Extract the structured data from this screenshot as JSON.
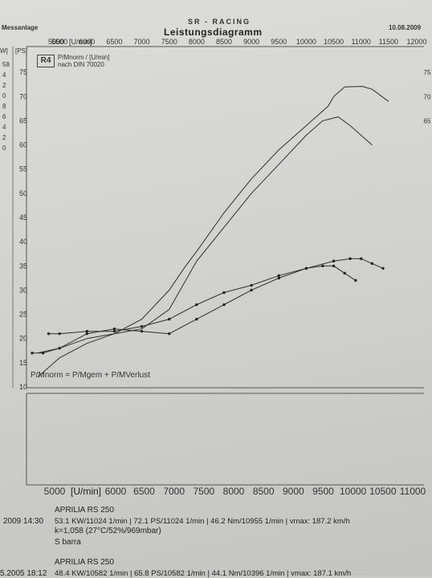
{
  "header": {
    "left": "Messanlage",
    "brand": "SR - RACING",
    "title": "Leistungsdiagramm",
    "date": "10.08.2009"
  },
  "logo": "R4",
  "legend": {
    "line1": "P/Mnorm / [U/min]",
    "line2": "nach DIN 70020"
  },
  "formula": "P/Mnorm = P/Mgem + P/MVerlust",
  "axes": {
    "top_unit_label": "[U/min]",
    "bottom_unit_label": "[U/min]",
    "left_unit_labels": [
      "W]",
      "[PS]"
    ]
  },
  "chart_data": {
    "type": "line",
    "title": "Leistungsdiagramm",
    "xlabel": "[U/min]",
    "ylabel": "[PS]",
    "xlim": [
      5000,
      12000
    ],
    "ylim": [
      10,
      80
    ],
    "x_ticks_top": [
      "5000",
      "5500",
      "6000",
      "6500",
      "7000",
      "7500",
      "8000",
      "8500",
      "9000",
      "9500",
      "10000",
      "10500",
      "11000",
      "11500",
      "12000"
    ],
    "x_ticks_bottom": [
      "5000",
      "6000",
      "6500",
      "7000",
      "7500",
      "8000",
      "8500",
      "9000",
      "9500",
      "10000",
      "10500",
      "11000"
    ],
    "y_ticks": [
      "10",
      "15",
      "20",
      "25",
      "30",
      "35",
      "40",
      "45",
      "50",
      "55",
      "60",
      "65",
      "70",
      "75"
    ],
    "right_y_ticks": [
      "75",
      "70",
      "65"
    ],
    "left_partial_ticks": [
      "58",
      "4",
      "2",
      "0",
      "8",
      "6",
      "4",
      "2",
      "0"
    ],
    "grid": false,
    "series": [
      {
        "style": "solid",
        "x": [
          5100,
          5500,
          6000,
          6500,
          7000,
          7500,
          7800,
          8000,
          8500,
          9000,
          9500,
          10000,
          10400,
          10500,
          10700,
          11024,
          11200,
          11500
        ],
        "y": [
          12,
          16,
          19,
          21,
          24,
          30,
          35,
          38,
          46,
          53,
          59,
          64,
          68,
          70,
          72,
          72.1,
          71.5,
          69
        ]
      },
      {
        "style": "solid",
        "x": [
          5100,
          5500,
          6000,
          6500,
          7000,
          7500,
          8000,
          8500,
          9000,
          9500,
          10000,
          10300,
          10582,
          10800,
          11000,
          11200
        ],
        "y": [
          17,
          18,
          20,
          21,
          22,
          26,
          36,
          43,
          50,
          56,
          62,
          65,
          65.8,
          64,
          62,
          60
        ]
      },
      {
        "style": "dotted-markers",
        "x": [
          5300,
          5500,
          6000,
          6500,
          7000,
          7500,
          8000,
          8500,
          9000,
          9500,
          10000,
          10500,
          10800,
          11000,
          11200,
          11400
        ],
        "y": [
          21,
          21,
          21.5,
          21.5,
          22.5,
          24,
          27,
          29.5,
          31,
          33,
          34.5,
          36,
          36.5,
          36.5,
          35.5,
          34.5
        ]
      },
      {
        "style": "dotted-markers",
        "x": [
          5000,
          5200,
          5500,
          6000,
          6500,
          7000,
          7500,
          8000,
          8500,
          9000,
          9500,
          10000,
          10300,
          10500,
          10700,
          10900
        ],
        "y": [
          17,
          17,
          18,
          21,
          22,
          21.5,
          21,
          24,
          27,
          30,
          32.5,
          34.5,
          35,
          35,
          33.5,
          32
        ]
      }
    ]
  },
  "runs": [
    {
      "date": "2009 14:30",
      "model": "APRILIA RS 250",
      "values": "53.1 KW/11024 1/min  |  72.1 PS/11024 1/min  |  46.2 Nm/10955 1/min  | vmax: 187.2 km/h",
      "conditions": "k=1,058 (27°C/52%/969mbar)",
      "name": "S  barra"
    },
    {
      "date": "5.2005 18:12",
      "model": "APRILIA RS 250",
      "values": "48.4 KW/10582 1/min  |  65.8 PS/10582 1/min  |  44.1 Nm/10396 1/min  | vmax: 187.1 km/h"
    }
  ]
}
